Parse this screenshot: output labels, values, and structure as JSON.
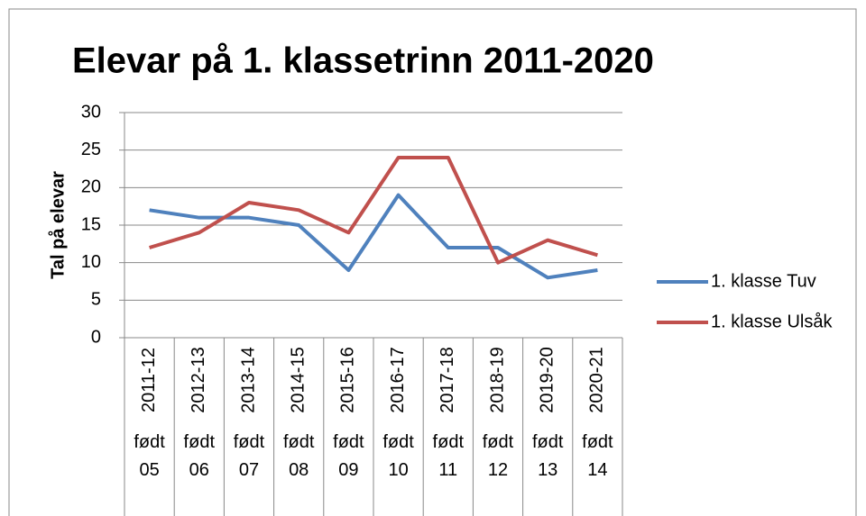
{
  "chart_data": {
    "type": "line",
    "title": "Elevar på 1. klassetrinn 2011-2020",
    "y_label": "Tal på elevar",
    "categories": [
      "2011-12",
      "2012-13",
      "2013-14",
      "2014-15",
      "2015-16",
      "2016-17",
      "2017-18",
      "2018-19",
      "2019-20",
      "2020-21"
    ],
    "category_groups": [
      "født 05",
      "født 06",
      "født 07",
      "født 08",
      "født 09",
      "født 10",
      "født 11",
      "født 12",
      "født 13",
      "født 14"
    ],
    "series": [
      {
        "name": "1. klasse Tuv",
        "color": "#4f81bd",
        "values": [
          17,
          16,
          16,
          15,
          9,
          19,
          12,
          12,
          8,
          9
        ]
      },
      {
        "name": "1. klasse Ulsåk",
        "color": "#c0504d",
        "values": [
          12,
          14,
          18,
          17,
          14,
          24,
          24,
          10,
          13,
          11
        ]
      }
    ],
    "ylim": [
      0,
      30
    ],
    "yticks": [
      0,
      5,
      10,
      15,
      20,
      25,
      30
    ],
    "grid": true,
    "legend": "right"
  }
}
